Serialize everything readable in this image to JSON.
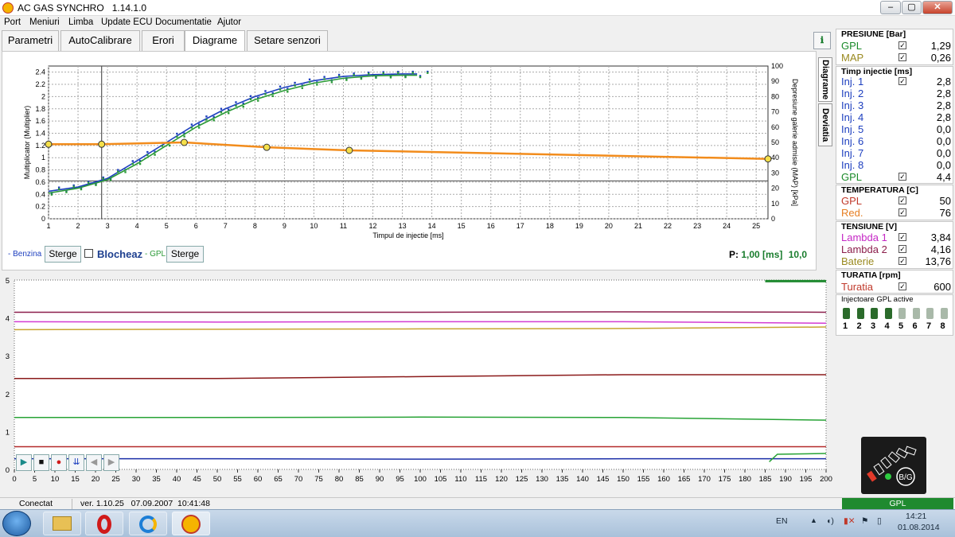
{
  "window": {
    "title": "AC GAS SYNCHRO",
    "version": "1.14.1.0",
    "min_label": "‒",
    "max_label": "▢",
    "close_label": "✕"
  },
  "menu": [
    "Port",
    "Meniuri",
    "Limba",
    "Update ECU",
    "Documentatie",
    "Ajutor"
  ],
  "tabs": [
    "Parametri",
    "AutoCalibrare",
    "Erori",
    "Diagrame",
    "Setare senzori"
  ],
  "help_glyph": "ℹ",
  "side_tabs": {
    "diagrame": "Diagrame",
    "deviatia": "Deviatia"
  },
  "chart_data": [
    {
      "type": "scatter",
      "xlabel": "Timpul de injectie [ms]",
      "ylabel": "Multiplicator (Multiplier)",
      "y2label": "Depresiune galerie admisie (MAP) [kPa]",
      "xlim": [
        1,
        25.4
      ],
      "ylim": [
        0,
        2.5
      ],
      "y2lim": [
        0,
        100
      ],
      "x_ticks": [
        1,
        2,
        3,
        4,
        5,
        6,
        7,
        8,
        9,
        10,
        11,
        12,
        13,
        14,
        15,
        16,
        17,
        18,
        19,
        20,
        21,
        22,
        23,
        24,
        25
      ],
      "y_ticks": [
        0,
        0.2,
        0.4,
        0.6,
        0.8,
        1,
        1.2,
        1.4,
        1.6,
        1.8,
        2,
        2.2,
        2.4
      ],
      "y2_ticks": [
        0,
        10,
        20,
        30,
        40,
        50,
        60,
        70,
        80,
        90,
        100
      ],
      "series": [
        {
          "color": "#1d3fbf",
          "x": [
            1,
            2,
            3,
            4,
            5,
            6,
            7,
            8,
            9,
            10,
            11,
            12,
            13,
            13.5
          ],
          "y": [
            0.45,
            0.52,
            0.66,
            0.95,
            1.25,
            1.55,
            1.8,
            2.0,
            2.15,
            2.26,
            2.33,
            2.36,
            2.37,
            2.37
          ]
        },
        {
          "color": "#2a9a36",
          "x": [
            1,
            2,
            3,
            4,
            5,
            6,
            7,
            8,
            9,
            10,
            11,
            12,
            13,
            13.5
          ],
          "y": [
            0.42,
            0.5,
            0.64,
            0.9,
            1.2,
            1.5,
            1.74,
            1.95,
            2.1,
            2.22,
            2.3,
            2.34,
            2.35,
            2.35
          ]
        },
        {
          "color": "#f28c1c",
          "x": [
            1,
            2.8,
            5.6,
            8.4,
            11.2,
            25.4
          ],
          "y": [
            1.22,
            1.22,
            1.25,
            1.17,
            1.12,
            0.98
          ]
        }
      ],
      "markers_x": [
        1,
        2.8,
        5.6,
        8.4,
        11.2,
        25.4
      ],
      "cursor_x": 2.8
    },
    {
      "type": "line",
      "xlim": [
        0,
        200
      ],
      "ylim": [
        0,
        5
      ],
      "x_ticks": [
        0,
        5,
        10,
        15,
        20,
        25,
        30,
        35,
        40,
        45,
        50,
        55,
        60,
        65,
        70,
        75,
        80,
        85,
        90,
        95,
        100,
        105,
        110,
        115,
        120,
        125,
        130,
        135,
        140,
        145,
        150,
        155,
        160,
        165,
        170,
        175,
        180,
        185,
        190,
        195,
        200
      ],
      "y_ticks": [
        0,
        1,
        2,
        3,
        4,
        5
      ],
      "series": [
        {
          "color": "#8b1e4b",
          "values": [
            4.15,
            4.15,
            4.15,
            4.16,
            4.15
          ]
        },
        {
          "color": "#d33cd3",
          "values": [
            3.9,
            3.89,
            3.9,
            3.9,
            3.86
          ]
        },
        {
          "color": "#c7a531",
          "values": [
            3.69,
            3.7,
            3.71,
            3.72,
            3.76
          ]
        },
        {
          "color": "#8b1a1a",
          "values": [
            2.4,
            2.4,
            2.45,
            2.5,
            2.5
          ]
        },
        {
          "color": "#27a335",
          "values": [
            1.37,
            1.37,
            1.38,
            1.37,
            1.3
          ]
        },
        {
          "color": "#b42a2a",
          "values": [
            0.6,
            0.6,
            0.6,
            0.6,
            0.6
          ]
        },
        {
          "color": "#1b2fa8",
          "values": [
            0.28,
            0.28,
            0.27,
            0.28,
            0.28
          ]
        }
      ]
    }
  ],
  "controls": {
    "benzina_label": "- Benzina",
    "sterge1": "Sterge",
    "blocheaza": "Blocheaz",
    "gpl_label": "- GPL",
    "sterge2": "Sterge",
    "p_label": "P:",
    "p_value": "1,00",
    "p_unit": "[ms]",
    "p_extra": "10,0"
  },
  "playback": [
    "▶",
    "■",
    "●",
    "⇊",
    "◀",
    "▶"
  ],
  "presiune": {
    "title": "PRESIUNE [Bar]",
    "rows": [
      {
        "label": "GPL",
        "value": "1,29",
        "color": "#1a8a2a"
      },
      {
        "label": "MAP",
        "value": "0,26",
        "color": "#9a8a20"
      }
    ]
  },
  "timp": {
    "title": "Timp injectie [ms]",
    "rows": [
      {
        "label": "Inj. 1",
        "value": "2,8",
        "check": true
      },
      {
        "label": "Inj. 2",
        "value": "2,8",
        "check": false
      },
      {
        "label": "Inj. 3",
        "value": "2,8",
        "check": false
      },
      {
        "label": "Inj. 4",
        "value": "2,8",
        "check": false
      },
      {
        "label": "Inj. 5",
        "value": "0,0",
        "check": false
      },
      {
        "label": "Inj. 6",
        "value": "0,0",
        "check": false
      },
      {
        "label": "Inj. 7",
        "value": "0,0",
        "check": false
      },
      {
        "label": "Inj. 8",
        "value": "0,0",
        "check": false
      },
      {
        "label": "GPL",
        "value": "4,4",
        "check": true
      }
    ]
  },
  "temperatura": {
    "title": "TEMPERATURA [C]",
    "rows": [
      {
        "label": "GPL",
        "value": "50",
        "color": "#c0392b"
      },
      {
        "label": "Red.",
        "value": "76",
        "color": "#e67e22"
      }
    ]
  },
  "tensiune": {
    "title": "TENSIUNE [V]",
    "rows": [
      {
        "label": "Lambda 1",
        "value": "3,84",
        "color": "#c526c5"
      },
      {
        "label": "Lambda 2",
        "value": "4,16",
        "color": "#8b1e4b"
      },
      {
        "label": "Baterie",
        "value": "13,76",
        "color": "#9a8a20"
      }
    ]
  },
  "turatia": {
    "title": "TURATIA [rpm]",
    "rows": [
      {
        "label": "Turatia",
        "value": "600",
        "color": "#c0392b"
      }
    ]
  },
  "injectoare": {
    "title": "Injectoare GPL active",
    "numbers": [
      "1",
      "2",
      "3",
      "4",
      "5",
      "6",
      "7",
      "8"
    ],
    "active": [
      true,
      true,
      true,
      true,
      false,
      false,
      false,
      false
    ]
  },
  "sensor_label": "B/G",
  "status": {
    "conn": "Conectat",
    "ver": "ver. 1.10.25",
    "date": "07.09.2007",
    "time": "10:41:48",
    "gpl": "GPL"
  },
  "taskbar": {
    "lang": "EN",
    "clock": "14:21",
    "date": "01.08.2014"
  },
  "colors": {
    "blue": "#1d3fbf",
    "green": "#2a9a36",
    "orange": "#f28c1c"
  }
}
